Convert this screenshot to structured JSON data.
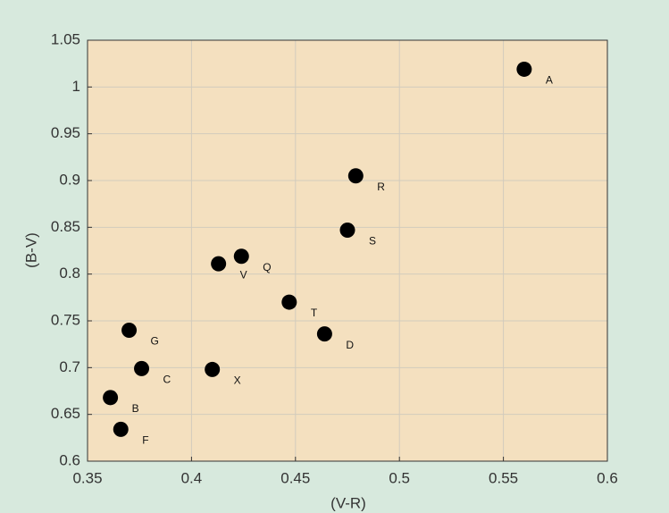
{
  "chart_data": {
    "type": "scatter",
    "xlabel": "(V-R)",
    "ylabel": "(B-V)",
    "labels": [
      "A",
      "R",
      "S",
      "Q",
      "V",
      "T",
      "D",
      "G",
      "C",
      "X",
      "B",
      "F"
    ],
    "x": [
      0.56,
      0.479,
      0.475,
      0.424,
      0.413,
      0.447,
      0.464,
      0.37,
      0.376,
      0.41,
      0.361,
      0.366
    ],
    "y": [
      1.019,
      0.905,
      0.847,
      0.819,
      0.811,
      0.77,
      0.736,
      0.74,
      0.699,
      0.698,
      0.668,
      0.634
    ],
    "color": "#000000",
    "xlim": [
      0.35,
      0.6
    ],
    "xticks": [
      0.35,
      0.4,
      0.45,
      0.5,
      0.55,
      0.6
    ],
    "ylim": [
      0.6,
      1.05
    ],
    "yticks": [
      0.6,
      0.65,
      0.7,
      0.75,
      0.8,
      0.85,
      0.9,
      0.95,
      1,
      1.05
    ],
    "grid": true
  }
}
